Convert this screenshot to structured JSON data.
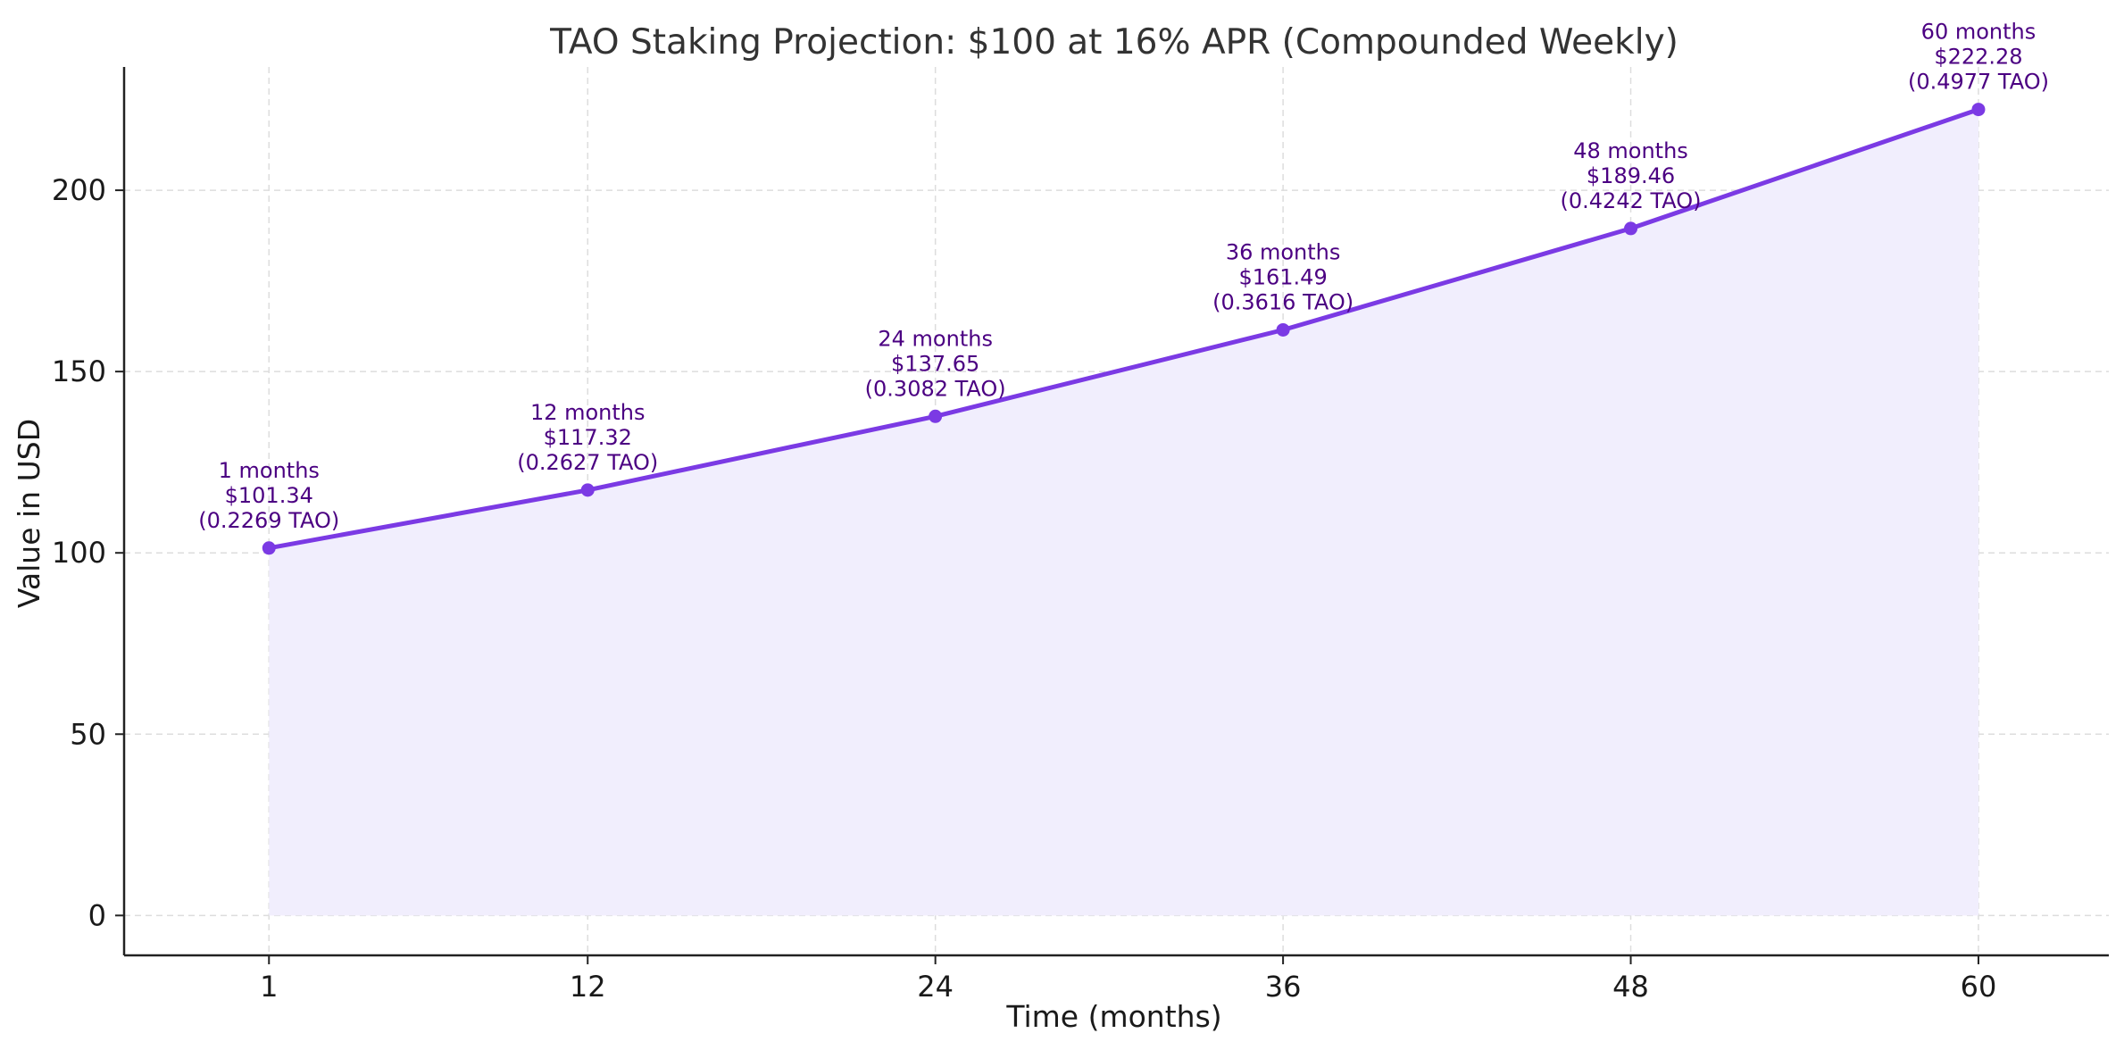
{
  "colors": {
    "line": "#7b3ae4",
    "area_fill": "#f1eefd",
    "label_text": "#4b0082",
    "grid": "#dddddd",
    "axis": "#222222"
  },
  "chart_data": {
    "type": "area",
    "title": "TAO Staking Projection: $100 at 16% APR (Compounded Weekly)",
    "xlabel": "Time (months)",
    "ylabel": "Value in USD",
    "xlim": [
      -4,
      64.5
    ],
    "ylim": [
      -11,
      234
    ],
    "grid": true,
    "x_ticks": [
      1,
      12,
      24,
      36,
      48,
      60
    ],
    "y_ticks": [
      0,
      50,
      100,
      150,
      200
    ],
    "series": [
      {
        "points": [
          {
            "x": 1,
            "y": 101.34,
            "label": [
              "1 months",
              "$101.34",
              "(0.2269 TAO)"
            ]
          },
          {
            "x": 12,
            "y": 117.32,
            "label": [
              "12 months",
              "$117.32",
              "(0.2627 TAO)"
            ]
          },
          {
            "x": 24,
            "y": 137.65,
            "label": [
              "24 months",
              "$137.65",
              "(0.3082 TAO)"
            ]
          },
          {
            "x": 36,
            "y": 161.49,
            "label": [
              "36 months",
              "$161.49",
              "(0.3616 TAO)"
            ]
          },
          {
            "x": 48,
            "y": 189.46,
            "label": [
              "48 months",
              "$189.46",
              "(0.4242 TAO)"
            ]
          },
          {
            "x": 60,
            "y": 222.28,
            "label": [
              "60 months",
              "$222.28",
              "(0.4977 TAO)"
            ]
          }
        ]
      }
    ]
  }
}
